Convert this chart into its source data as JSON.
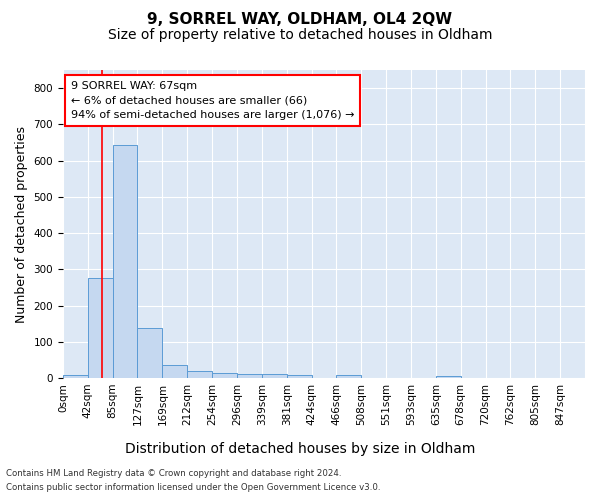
{
  "title": "9, SORREL WAY, OLDHAM, OL4 2QW",
  "subtitle": "Size of property relative to detached houses in Oldham",
  "xlabel": "Distribution of detached houses by size in Oldham",
  "ylabel": "Number of detached properties",
  "bar_color": "#c5d8f0",
  "bar_edge_color": "#5b9bd5",
  "background_color": "#dde8f5",
  "grid_color": "#ffffff",
  "bins": [
    "0sqm",
    "42sqm",
    "85sqm",
    "127sqm",
    "169sqm",
    "212sqm",
    "254sqm",
    "296sqm",
    "339sqm",
    "381sqm",
    "424sqm",
    "466sqm",
    "508sqm",
    "551sqm",
    "593sqm",
    "635sqm",
    "678sqm",
    "720sqm",
    "762sqm",
    "805sqm",
    "847sqm"
  ],
  "values": [
    8,
    275,
    642,
    138,
    35,
    20,
    13,
    10,
    10,
    9,
    0,
    7,
    0,
    0,
    0,
    6,
    0,
    0,
    0,
    0,
    0
  ],
  "ylim_max": 850,
  "yticks": [
    0,
    100,
    200,
    300,
    400,
    500,
    600,
    700,
    800
  ],
  "bin_start_sqm": [
    0,
    42,
    85,
    127,
    169,
    212,
    254,
    296,
    339,
    381,
    424,
    466,
    508,
    551,
    593,
    635,
    678,
    720,
    762,
    805,
    847
  ],
  "red_line_sqm": 67,
  "annotation_text": "9 SORREL WAY: 67sqm\n← 6% of detached houses are smaller (66)\n94% of semi-detached houses are larger (1,076) →",
  "footer1": "Contains HM Land Registry data © Crown copyright and database right 2024.",
  "footer2": "Contains public sector information licensed under the Open Government Licence v3.0.",
  "title_fontsize": 11,
  "subtitle_fontsize": 10,
  "annotation_fontsize": 8,
  "ylabel_fontsize": 9,
  "xlabel_fontsize": 10,
  "tick_fontsize": 7.5
}
